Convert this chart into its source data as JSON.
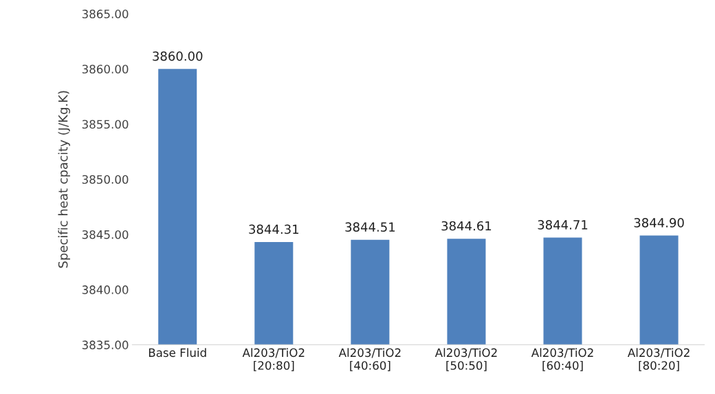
{
  "chart_data": {
    "type": "bar",
    "ylabel": "Specific heat cpacity (J/Kg.K)",
    "categories": [
      "Base Fluid",
      "Al203/TiO2\n[20:80]",
      "Al203/TiO2\n[40:60]",
      "Al203/TiO2\n[50:50]",
      "Al203/TiO2\n[60:40]",
      "Al203/TiO2\n[80:20]"
    ],
    "values": [
      3860.0,
      3844.31,
      3844.51,
      3844.61,
      3844.71,
      3844.9
    ],
    "color": "#4f81bd",
    "ylim": [
      3835,
      3865
    ],
    "yticks": [
      {
        "value": 3835,
        "label": "3835.00"
      },
      {
        "value": 3840,
        "label": "3840.00"
      },
      {
        "value": 3845,
        "label": "3845.00"
      },
      {
        "value": 3850,
        "label": "3850.00"
      },
      {
        "value": 3855,
        "label": "3855.00"
      },
      {
        "value": 3860,
        "label": "3860.00"
      },
      {
        "value": 3865,
        "label": "3865.00"
      }
    ],
    "value_labels": [
      "3860.00",
      "3844.31",
      "3844.51",
      "3844.61",
      "3844.71",
      "3844.90"
    ],
    "grid": false
  }
}
